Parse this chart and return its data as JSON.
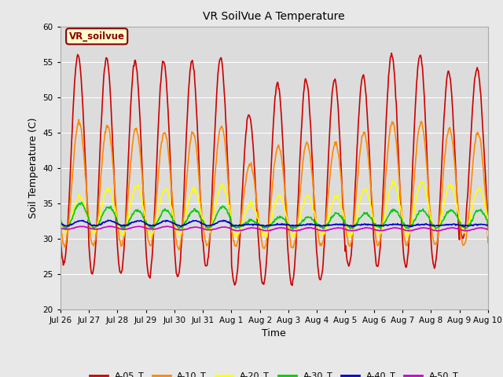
{
  "title": "VR SoilVue A Temperature",
  "xlabel": "Time",
  "ylabel": "Soil Temperature (C)",
  "ylim": [
    20,
    60
  ],
  "yticks": [
    20,
    25,
    30,
    35,
    40,
    45,
    50,
    55,
    60
  ],
  "background_color": "#e8e8e8",
  "plot_bg_color": "#dcdcdc",
  "series": {
    "A-05_T": {
      "color": "#cc0000",
      "linewidth": 1.2
    },
    "A-10_T": {
      "color": "#ff8800",
      "linewidth": 1.2
    },
    "A-20_T": {
      "color": "#ffff00",
      "linewidth": 1.2
    },
    "A-30_T": {
      "color": "#00cc00",
      "linewidth": 1.2
    },
    "A-40_T": {
      "color": "#0000cc",
      "linewidth": 1.2
    },
    "A-50_T": {
      "color": "#cc00cc",
      "linewidth": 1.2
    }
  },
  "x_tick_labels": [
    "Jul 26",
    "Jul 27",
    "Jul 28",
    "Jul 29",
    "Jul 30",
    "Jul 31",
    "Aug 1",
    "Aug 2",
    "Aug 3",
    "Aug 4",
    "Aug 5",
    "Aug 6",
    "Aug 7",
    "Aug 8",
    "Aug 9",
    "Aug 10"
  ],
  "annotation_text": "VR_soilvue",
  "annotation_color": "#8b0000",
  "annotation_bg": "#ffffcc",
  "annotation_border": "#8b0000",
  "n_days": 15
}
